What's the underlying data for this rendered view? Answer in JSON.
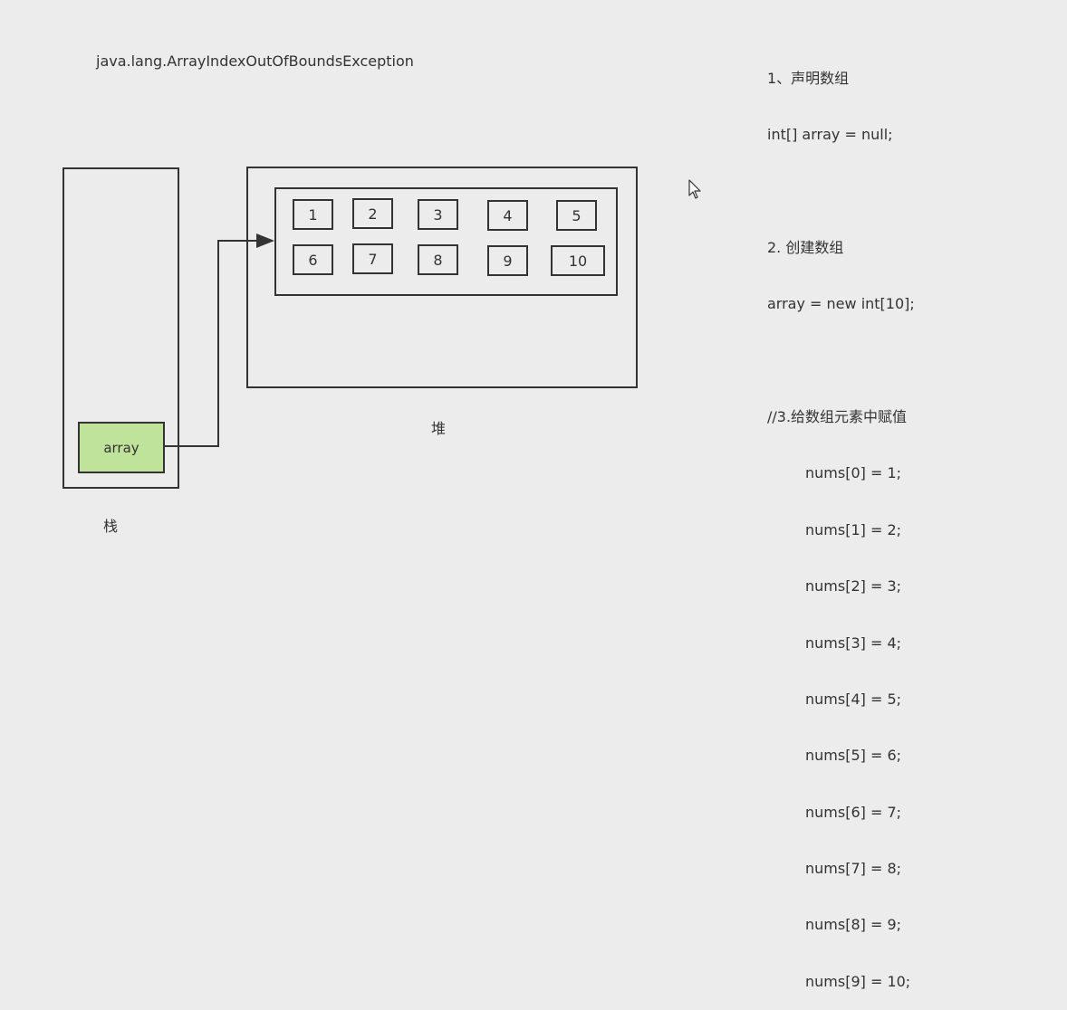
{
  "exception_text": "java.lang.ArrayIndexOutOfBoundsException",
  "stack": {
    "label": "栈",
    "variable": "array"
  },
  "heap": {
    "label": "堆",
    "cells_row1": [
      "1",
      "2",
      "3",
      "4",
      "5"
    ],
    "cells_row2": [
      "6",
      "7",
      "8",
      "9",
      "10"
    ]
  },
  "code": {
    "step1_title": "1、声明数组",
    "step1_code": "int[] array = null;",
    "step2_title": "2. 创建数组",
    "step2_code": "array = new int[10];",
    "step3_title": "//3.给数组元素中赋值",
    "assignments": [
      "nums[0] = 1;",
      "nums[1] = 2;",
      "nums[2] = 3;",
      "nums[3] = 4;",
      "nums[4] = 5;",
      "nums[5] = 6;",
      "nums[6] = 7;",
      "nums[7] = 8;",
      "nums[8] = 9;",
      "nums[9] = 10;"
    ]
  },
  "colors": {
    "background": "#ececec",
    "stroke": "#333333",
    "variable_fill": "#bfe39a"
  },
  "icons": {
    "cursor": "mouse-pointer-icon"
  }
}
